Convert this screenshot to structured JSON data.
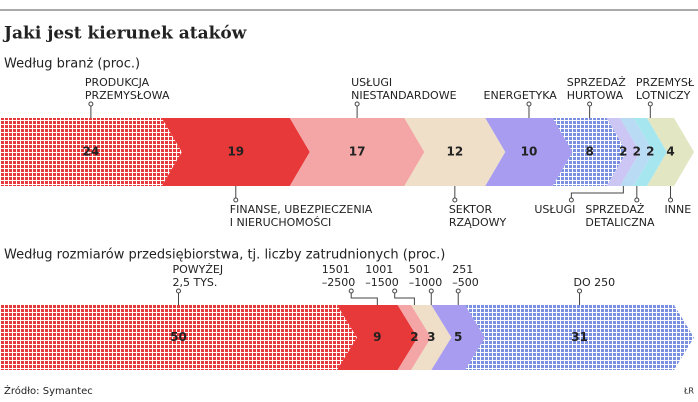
{
  "title": "Jaki jest kierunek ataków",
  "source": "Źródło: Symantec",
  "credit": "ŁR",
  "chart_data": [
    {
      "type": "stacked_arrow_bar",
      "subtitle": "Według branż  (proc.)",
      "values": [
        24,
        19,
        17,
        12,
        10,
        8,
        2,
        2,
        2,
        4
      ],
      "labels": [
        [
          "PRODUKCJA",
          "PRZEMYSŁOWA"
        ],
        [
          "FINANSE, UBEZPIECZENIA",
          "I NIERUCHOMOŚCI"
        ],
        [
          "USŁUGI",
          "NIESTANDARDOWE"
        ],
        [
          "SEKTOR",
          "RZĄDOWY"
        ],
        [
          "ENERGETYKA"
        ],
        [
          "SPRZEDAŻ",
          "HURTOWA"
        ],
        [
          "USŁUGI"
        ],
        [
          "SPRZEDAŻ",
          "DETALICZNA"
        ],
        [
          "PRZEMYSŁ",
          "LOTNICZY"
        ],
        [
          "INNE"
        ]
      ],
      "label_side": [
        "top",
        "bottom",
        "top",
        "bottom",
        "top",
        "top",
        "bottom",
        "bottom",
        "top",
        "bottom"
      ],
      "colors": [
        "#e8393a",
        "#e8393a",
        "#f4a6a6",
        "#f0dfc8",
        "#a79cf0",
        "#7b8fe0",
        "#cbc6f4",
        "#b9dcf4",
        "#a6e6ee",
        "#e2e6c2"
      ],
      "patterned": [
        true,
        false,
        false,
        false,
        false,
        true,
        false,
        false,
        false,
        false
      ]
    },
    {
      "type": "stacked_arrow_bar",
      "subtitle": "Według rozmiarów przedsiębiorstwa, tj. liczby zatrudnionych (proc.)",
      "values": [
        50,
        9,
        2,
        3,
        5,
        31
      ],
      "labels": [
        [
          "POWYŻEJ",
          "2,5 TYS."
        ],
        [
          "1501",
          "–2500"
        ],
        [
          "1001",
          "–1500"
        ],
        [
          "501",
          "–1000"
        ],
        [
          "251",
          "–500"
        ],
        [
          "DO 250"
        ]
      ],
      "label_side": [
        "top",
        "top",
        "top",
        "top",
        "top",
        "top"
      ],
      "colors": [
        "#e8393a",
        "#e8393a",
        "#f4a6a6",
        "#f0dfc8",
        "#a79cf0",
        "#7b8fe0"
      ],
      "patterned": [
        true,
        false,
        false,
        false,
        false,
        true
      ]
    }
  ]
}
